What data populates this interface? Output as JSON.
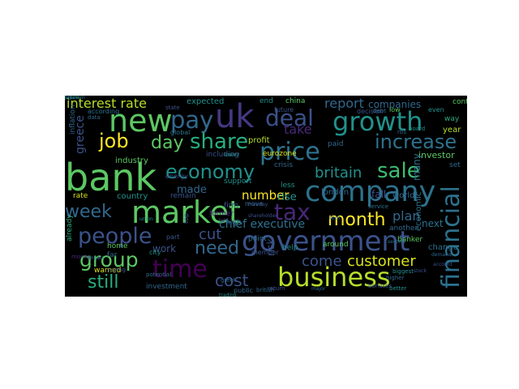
{
  "wordcloud": {
    "background": "#000000",
    "words": [
      {
        "text": "bank",
        "color": "#5cc863"
      },
      {
        "text": "government",
        "color": "#3b528b"
      },
      {
        "text": "market",
        "color": "#5cc863"
      },
      {
        "text": "company",
        "color": "#2c728e"
      },
      {
        "text": "business",
        "color": "#b5de2b"
      },
      {
        "text": "growth",
        "color": "#21918c"
      },
      {
        "text": "new",
        "color": "#5cc863"
      },
      {
        "text": "uk",
        "color": "#443983"
      },
      {
        "text": "price",
        "color": "#2c728e"
      },
      {
        "text": "pay",
        "color": "#31688e"
      },
      {
        "text": "time",
        "color": "#440154"
      },
      {
        "text": "share",
        "color": "#28ae80"
      },
      {
        "text": "people",
        "color": "#3b528b"
      },
      {
        "text": "economy",
        "color": "#21918c"
      },
      {
        "text": "sale",
        "color": "#3fbc73"
      },
      {
        "text": "group",
        "color": "#5cc863"
      },
      {
        "text": "increase",
        "color": "#2c728e"
      },
      {
        "text": "tax",
        "color": "#482878"
      },
      {
        "text": "month",
        "color": "#fde725"
      },
      {
        "text": "financial",
        "color": "#2c728e"
      },
      {
        "text": "deal",
        "color": "#3b528b"
      },
      {
        "text": "day",
        "color": "#5cc863"
      },
      {
        "text": "week",
        "color": "#31688e"
      },
      {
        "text": "job",
        "color": "#fde725"
      },
      {
        "text": "need",
        "color": "#31688e"
      },
      {
        "text": "still",
        "color": "#28ae80"
      },
      {
        "text": "cost",
        "color": "#3b528b"
      },
      {
        "text": "customer",
        "color": "#d8e219"
      },
      {
        "text": "britain",
        "color": "#21918c"
      },
      {
        "text": "interest rate",
        "color": "#b5de2b"
      },
      {
        "text": "report",
        "color": "#31688e"
      },
      {
        "text": "greece",
        "color": "#3b528b"
      },
      {
        "text": "take",
        "color": "#482878"
      },
      {
        "text": "come",
        "color": "#3b528b"
      },
      {
        "text": "plan",
        "color": "#31688e"
      },
      {
        "text": "cut",
        "color": "#3b528b"
      },
      {
        "text": "number",
        "color": "#fde725"
      },
      {
        "text": "made",
        "color": "#31688e"
      },
      {
        "text": "chief executive",
        "color": "#2c728e"
      },
      {
        "text": "rise",
        "color": "#21918c"
      },
      {
        "text": "companies",
        "color": "#31688e"
      },
      {
        "text": "work",
        "color": "#3b528b"
      },
      {
        "text": "risk",
        "color": "#3b528b"
      },
      {
        "text": "next",
        "color": "#2c728e"
      },
      {
        "text": "investor",
        "color": "#5cc863"
      },
      {
        "text": "many",
        "color": "#2c728e"
      },
      {
        "text": "economic",
        "color": "#2c728e"
      },
      {
        "text": "fall",
        "color": "#3b528b"
      },
      {
        "text": "world",
        "color": "#31688e"
      },
      {
        "text": "country",
        "color": "#21918c"
      },
      {
        "text": "industry",
        "color": "#5cc863"
      },
      {
        "text": "warned",
        "color": "#d8e219"
      },
      {
        "text": "rate",
        "color": "#d8e219"
      },
      {
        "text": "expected",
        "color": "#21918c"
      },
      {
        "text": "end",
        "color": "#21918c"
      },
      {
        "text": "china",
        "color": "#5cc863"
      },
      {
        "text": "including",
        "color": "#3b528b"
      },
      {
        "text": "profit",
        "color": "#b5de2b"
      },
      {
        "text": "eurozone",
        "color": "#d8e219"
      },
      {
        "text": "crisis",
        "color": "#31688e"
      },
      {
        "text": "paid",
        "color": "#31688e"
      },
      {
        "text": "support",
        "color": "#21918c"
      },
      {
        "text": "less",
        "color": "#21918c"
      },
      {
        "text": "london",
        "color": "#31688e"
      },
      {
        "text": "firm",
        "color": "#3b528b"
      },
      {
        "text": "former",
        "color": "#482878"
      },
      {
        "text": "remain",
        "color": "#3b528b"
      },
      {
        "text": "high",
        "color": "#31688e"
      },
      {
        "text": "point",
        "color": "#2c728e"
      },
      {
        "text": "help",
        "color": "#21918c"
      },
      {
        "text": "around",
        "color": "#5cc863"
      },
      {
        "text": "investment",
        "color": "#31688e"
      },
      {
        "text": "home",
        "color": "#5cc863"
      },
      {
        "text": "far",
        "color": "#31688e"
      },
      {
        "text": "already",
        "color": "#28ae80"
      },
      {
        "text": "banker",
        "color": "#5cc863"
      },
      {
        "text": "another",
        "color": "#31688e"
      },
      {
        "text": "change",
        "color": "#2c728e"
      },
      {
        "text": "year",
        "color": "#b5de2b"
      },
      {
        "text": "way",
        "color": "#28ae80"
      },
      {
        "text": "continue",
        "color": "#5cc863"
      },
      {
        "text": "set",
        "color": "#31688e"
      },
      {
        "text": "low",
        "color": "#5cc863"
      },
      {
        "text": "even",
        "color": "#21918c"
      },
      {
        "text": "decision",
        "color": "#3b528b"
      },
      {
        "text": "member",
        "color": "#3b528b"
      },
      {
        "text": "move",
        "color": "#31688e"
      },
      {
        "text": "energy",
        "color": "#3b528b"
      },
      {
        "text": "global",
        "color": "#2c728e"
      },
      {
        "text": "inflation",
        "color": "#31688e"
      },
      {
        "text": "according",
        "color": "#2c728e"
      },
      {
        "text": "part",
        "color": "#3b528b"
      },
      {
        "text": "future",
        "color": "#3b528b"
      },
      {
        "text": "city",
        "color": "#21918c"
      },
      {
        "text": "money",
        "color": "#482878"
      },
      {
        "text": "service",
        "color": "#2c728e"
      },
      {
        "text": "public",
        "color": "#31688e"
      },
      {
        "text": "return",
        "color": "#3b528b"
      },
      {
        "text": "british",
        "color": "#31688e"
      },
      {
        "text": "bonuses",
        "color": "#3b528b"
      },
      {
        "text": "better",
        "color": "#21918c"
      },
      {
        "text": "feel",
        "color": "#31688e"
      },
      {
        "text": "top",
        "color": "#3b528b"
      },
      {
        "text": "debt",
        "color": "#31688e"
      },
      {
        "text": "rbs",
        "color": "#31688e"
      },
      {
        "text": "board",
        "color": "#21918c"
      },
      {
        "text": "lower",
        "color": "#21918c"
      },
      {
        "text": "data",
        "color": "#31688e"
      },
      {
        "text": "state",
        "color": "#3b528b"
      },
      {
        "text": "higher",
        "color": "#31688e"
      },
      {
        "text": "biggest",
        "color": "#21918c"
      },
      {
        "text": "greek",
        "color": "#31688e"
      },
      {
        "text": "saying",
        "color": "#3b528b"
      },
      {
        "text": "potential",
        "color": "#2c728e"
      },
      {
        "text": "trading",
        "color": "#21918c"
      },
      {
        "text": "shareholder",
        "color": "#3b528b"
      },
      {
        "text": "impact",
        "color": "#31688e"
      },
      {
        "text": "monday",
        "color": "#3b528b"
      },
      {
        "text": "account",
        "color": "#3b528b"
      },
      {
        "text": "stock",
        "color": "#3b528b"
      },
      {
        "text": "major",
        "color": "#31688e"
      },
      {
        "text": "second",
        "color": "#2c728e"
      },
      {
        "text": "demand",
        "color": "#31688e"
      },
      {
        "text": "told",
        "color": "#3b528b"
      },
      {
        "text": "union",
        "color": "#21918c"
      },
      {
        "text": "bill",
        "color": "#3b528b"
      },
      {
        "text": "figure",
        "color": "#31688e"
      },
      {
        "text": "problem",
        "color": "#21918c"
      }
    ]
  }
}
